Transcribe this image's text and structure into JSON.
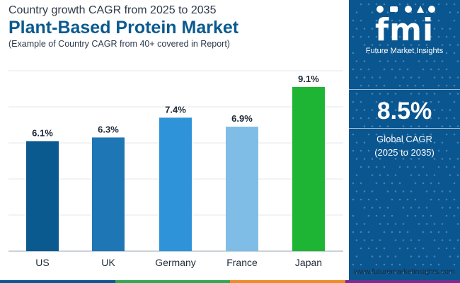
{
  "header": {
    "subtitle": "Country growth CAGR from 2025 to 2035",
    "title": "Plant-Based Protein Market",
    "note": "(Example of Country CAGR from 40+ covered in Report)"
  },
  "chart_data": {
    "type": "bar",
    "title": "Plant-Based Protein Market",
    "categories": [
      "US",
      "UK",
      "Germany",
      "France",
      "Japan"
    ],
    "values": [
      6.1,
      6.3,
      7.4,
      6.9,
      9.1
    ],
    "data_labels": [
      "6.1%",
      "6.3%",
      "7.4%",
      "6.9%",
      "9.1%"
    ],
    "colors": [
      "#0b5a8f",
      "#1f76b4",
      "#2e93d9",
      "#7fbde6",
      "#1fb534"
    ],
    "xlabel": "",
    "ylabel": "",
    "ylim": [
      0,
      10
    ],
    "grid": true,
    "unit": "%"
  },
  "sidebar": {
    "logo_mark": "fmi",
    "logo_text": "Future Market Insights",
    "global_cagr_value": "8.5%",
    "global_cagr_label": "Global CAGR",
    "global_cagr_period": "(2025 to 2035)",
    "background": "#0a5690"
  },
  "footer": {
    "website": "www.futuremarketinsights.com",
    "bar_colors": [
      "#0a5690",
      "#2fa84f",
      "#f08a24",
      "#7b2d8e"
    ]
  }
}
